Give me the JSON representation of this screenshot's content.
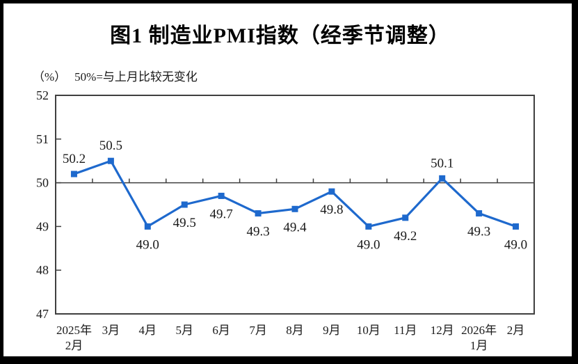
{
  "title": "图1  制造业PMI指数（经季节调整）",
  "subtitle": {
    "unit": "（%）",
    "note": "50%=与上月比较无变化"
  },
  "colors": {
    "line": "#1E69CD",
    "axis": "#3F3F3F",
    "text": "#1a1a1a",
    "frame": "#000000",
    "page_background": "#ffffff"
  },
  "chart_data": {
    "type": "line",
    "title": "图1 制造业PMI指数（经季节调整）",
    "series_name": "制造业PMI指数",
    "categories": [
      "2025年\n2月",
      "3月",
      "4月",
      "5月",
      "6月",
      "7月",
      "8月",
      "9月",
      "10月",
      "11月",
      "12月",
      "2026年\n1月",
      "2月"
    ],
    "values": [
      50.2,
      50.5,
      49.0,
      49.5,
      49.7,
      49.3,
      49.4,
      49.8,
      49.0,
      49.2,
      50.1,
      49.3,
      49.0
    ],
    "data_labels": [
      "50.2",
      "50.5",
      "49.0",
      "49.5",
      "49.7",
      "49.3",
      "49.4",
      "49.8",
      "49.0",
      "49.2",
      "50.1",
      "49.3",
      "49.0"
    ],
    "label_positions": [
      "above",
      "above",
      "below",
      "below",
      "below",
      "below",
      "below",
      "below",
      "below",
      "below",
      "above",
      "below",
      "below"
    ],
    "ylabel": "（%）",
    "xlabel": "",
    "ylim": [
      47,
      52
    ],
    "y_ticks": [
      47,
      48,
      49,
      50,
      51,
      52
    ],
    "reference_line": 50,
    "marker": "square",
    "grid": "off",
    "legend": "none"
  }
}
